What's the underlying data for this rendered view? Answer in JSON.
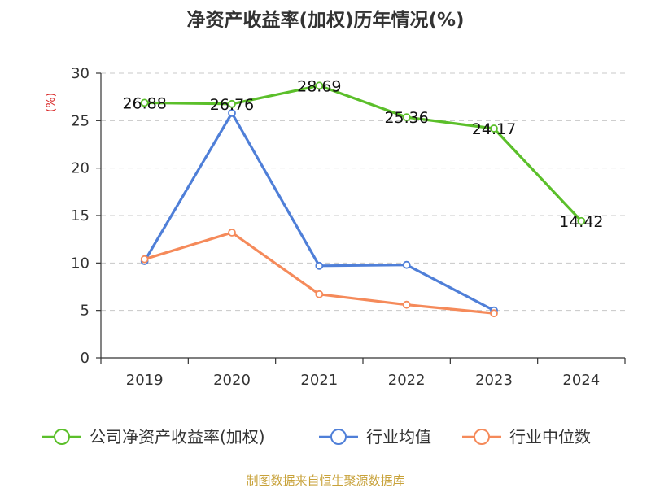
{
  "chart_data": {
    "type": "line",
    "title": "净资产收益率(加权)历年情况(%)",
    "ylabel": "(%)",
    "categories": [
      "2019",
      "2020",
      "2021",
      "2022",
      "2023",
      "2024"
    ],
    "yticks": [
      "0",
      "5",
      "10",
      "15",
      "20",
      "25",
      "30"
    ],
    "ylim": [
      0,
      30
    ],
    "grid": true,
    "legend_position": "bottom",
    "series": [
      {
        "name": "公司净资产收益率(加权)",
        "color": "#5bbf2a",
        "values": [
          26.88,
          26.76,
          28.69,
          25.36,
          24.17,
          14.42
        ],
        "labels": [
          "26.88",
          "26.76",
          "28.69",
          "25.36",
          "24.17",
          "14.42"
        ]
      },
      {
        "name": "行业均值",
        "color": "#4f7fd8",
        "values": [
          10.2,
          25.8,
          9.7,
          9.8,
          5.0,
          null
        ]
      },
      {
        "name": "行业中位数",
        "color": "#f58a5a",
        "values": [
          10.4,
          13.2,
          6.7,
          5.6,
          4.7,
          null
        ]
      }
    ]
  },
  "source": "制图数据来自恒生聚源数据库"
}
